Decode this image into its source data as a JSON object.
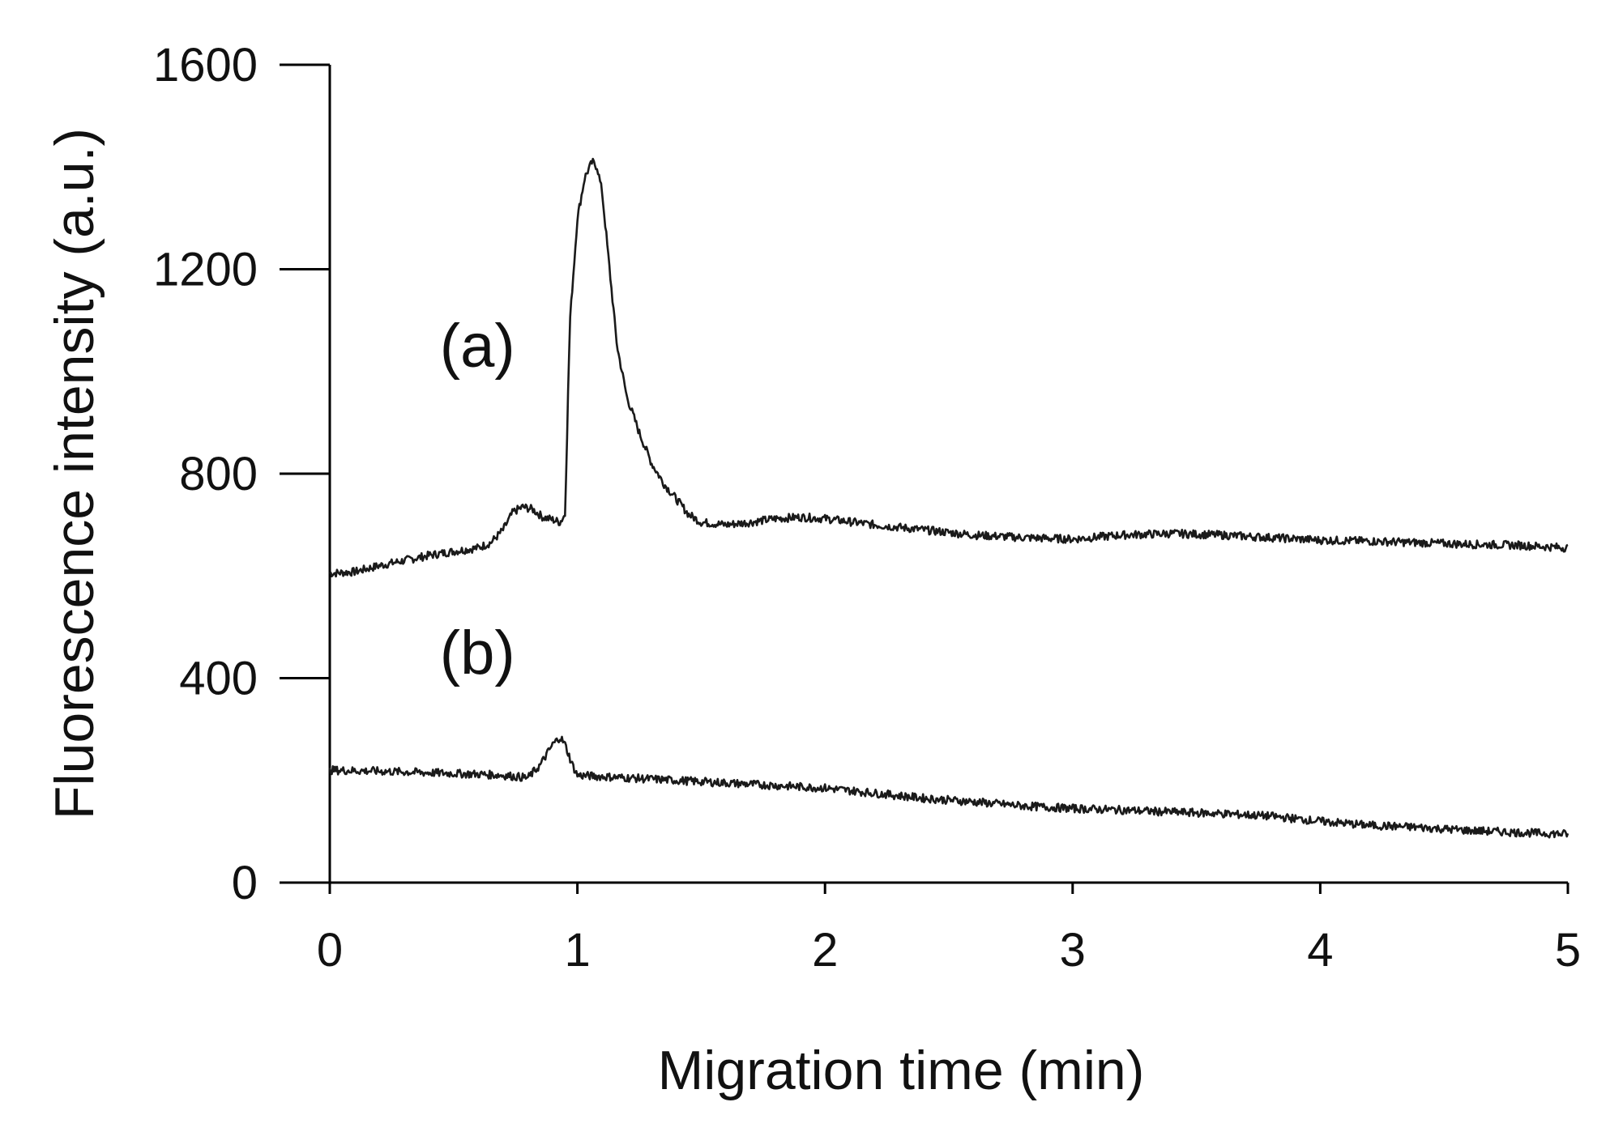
{
  "chart_data": {
    "type": "line",
    "title": "",
    "xlabel": "Migration time (min)",
    "ylabel": "Fluorescence intensity (a.u.)",
    "xlim": [
      0,
      5
    ],
    "ylim": [
      0,
      1600
    ],
    "x_ticks": [
      "0",
      "1",
      "2",
      "3",
      "4",
      "5"
    ],
    "y_ticks": [
      "0",
      "400",
      "800",
      "1200",
      "1600"
    ],
    "grid": false,
    "legend": "none",
    "line_color": "#1a1a1a",
    "series": [
      {
        "label": "(a)",
        "label_pos": {
          "x": 0.4,
          "y": 1050
        },
        "x": [
          0,
          0.1,
          0.2,
          0.3,
          0.4,
          0.5,
          0.6,
          0.65,
          0.7,
          0.74,
          0.78,
          0.82,
          0.86,
          0.9,
          0.93,
          0.95,
          0.97,
          1.0,
          1.03,
          1.06,
          1.08,
          1.1,
          1.13,
          1.16,
          1.2,
          1.25,
          1.3,
          1.35,
          1.4,
          1.45,
          1.5,
          1.6,
          1.7,
          1.8,
          1.9,
          2.0,
          2.2,
          2.4,
          2.6,
          2.8,
          3.0,
          3.2,
          3.4,
          3.6,
          3.8,
          4.0,
          4.2,
          4.4,
          4.6,
          4.8,
          5.0
        ],
        "y": [
          605,
          608,
          620,
          630,
          640,
          648,
          655,
          665,
          690,
          725,
          735,
          730,
          715,
          710,
          705,
          720,
          1100,
          1300,
          1380,
          1410,
          1400,
          1350,
          1200,
          1050,
          950,
          880,
          820,
          780,
          750,
          720,
          705,
          700,
          705,
          712,
          715,
          712,
          700,
          690,
          680,
          675,
          672,
          680,
          683,
          680,
          675,
          670,
          668,
          665,
          662,
          660,
          655
        ]
      },
      {
        "label": "(b)",
        "label_pos": {
          "x": 0.4,
          "y": 450
        },
        "x": [
          0,
          0.2,
          0.4,
          0.6,
          0.7,
          0.8,
          0.85,
          0.9,
          0.93,
          0.95,
          0.98,
          1.0,
          1.2,
          1.4,
          1.6,
          1.8,
          2.0,
          2.2,
          2.4,
          2.6,
          2.8,
          3.0,
          3.2,
          3.4,
          3.6,
          3.8,
          4.0,
          4.2,
          4.4,
          4.6,
          4.8,
          5.0
        ],
        "y": [
          220,
          218,
          215,
          212,
          210,
          205,
          230,
          270,
          285,
          270,
          230,
          210,
          205,
          200,
          195,
          190,
          185,
          175,
          165,
          158,
          150,
          145,
          142,
          138,
          135,
          130,
          120,
          112,
          108,
          102,
          98,
          95
        ]
      }
    ]
  }
}
